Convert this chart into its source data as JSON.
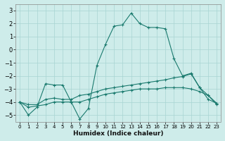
{
  "xlabel": "Humidex (Indice chaleur)",
  "background_color": "#ceecea",
  "grid_color": "#a8d5d2",
  "line_color": "#1a7a6e",
  "xlim": [
    -0.5,
    23.5
  ],
  "ylim": [
    -5.5,
    3.5
  ],
  "yticks": [
    -5,
    -4,
    -3,
    -2,
    -1,
    0,
    1,
    2,
    3
  ],
  "xticks": [
    0,
    1,
    2,
    3,
    4,
    5,
    6,
    7,
    8,
    9,
    10,
    11,
    12,
    13,
    14,
    15,
    16,
    17,
    18,
    19,
    20,
    21,
    22,
    23
  ],
  "series": [
    {
      "x": [
        0,
        1,
        2,
        3,
        4,
        5,
        6,
        7,
        8,
        9,
        10,
        11,
        12,
        13,
        14,
        15,
        16,
        17,
        18,
        19,
        20,
        21,
        22,
        23
      ],
      "y": [
        -4.0,
        -5.0,
        -4.4,
        -2.6,
        -2.7,
        -2.7,
        -4.0,
        -5.3,
        -4.5,
        -1.2,
        0.4,
        1.8,
        1.9,
        2.8,
        2.0,
        1.7,
        1.7,
        1.6,
        -0.7,
        -2.0,
        -1.8,
        -2.9,
        -3.8,
        -4.1
      ]
    },
    {
      "x": [
        0,
        1,
        2,
        3,
        4,
        5,
        6,
        7,
        8,
        9,
        10,
        11,
        12,
        13,
        14,
        15,
        16,
        17,
        18,
        19,
        20,
        21,
        22,
        23
      ],
      "y": [
        -4.0,
        -4.2,
        -4.2,
        -3.8,
        -3.7,
        -3.8,
        -3.8,
        -3.5,
        -3.4,
        -3.2,
        -3.0,
        -2.9,
        -2.8,
        -2.7,
        -2.6,
        -2.5,
        -2.4,
        -2.3,
        -2.15,
        -2.05,
        -1.85,
        -2.9,
        -3.5,
        -4.2
      ]
    },
    {
      "x": [
        0,
        1,
        2,
        3,
        4,
        5,
        6,
        7,
        8,
        9,
        10,
        11,
        12,
        13,
        14,
        15,
        16,
        17,
        18,
        19,
        20,
        21,
        22,
        23
      ],
      "y": [
        -4.0,
        -4.4,
        -4.3,
        -4.2,
        -4.0,
        -4.0,
        -4.0,
        -4.0,
        -3.8,
        -3.6,
        -3.4,
        -3.3,
        -3.2,
        -3.1,
        -3.0,
        -3.0,
        -3.0,
        -2.9,
        -2.9,
        -2.9,
        -3.0,
        -3.2,
        -3.5,
        -4.1
      ]
    }
  ]
}
